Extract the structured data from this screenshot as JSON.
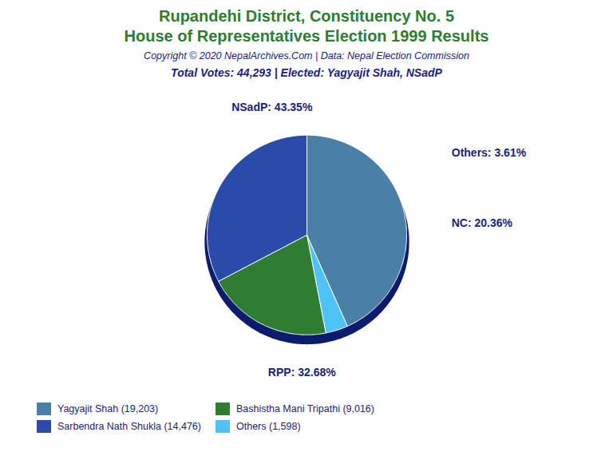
{
  "chart_data": {
    "type": "pie",
    "title": "Rupandehi District, Constituency No. 5",
    "subtitle": "House of Representatives Election 1999 Results",
    "annotations": [
      "Copyright © 2020 NepalArchives.Com | Data: Nepal Election Commission",
      "Total Votes: 44,293 | Elected: Yagyajit Shah, NSadP"
    ],
    "categories": [
      "NSadP",
      "Others",
      "NC",
      "RPP"
    ],
    "values": [
      43.35,
      3.61,
      20.36,
      32.68
    ],
    "value_labels": [
      "NSadP: 43.35%",
      "Others: 3.61%",
      "NC: 20.36%",
      "RPP: 32.68%"
    ],
    "colors": [
      "#4A7FA8",
      "#4DC3F7",
      "#2E7D32",
      "#2B4BAA"
    ],
    "data_labels": true,
    "legend": "lower left",
    "legend_entries": [
      {
        "label": "Yagyajit Shah (19,203)",
        "color": "#4A7FA8"
      },
      {
        "label": "Sarbendra Nath Shukla (14,476)",
        "color": "#2B4BAA"
      },
      {
        "label": "Bashistha Mani Tripathi (9,016)",
        "color": "#2E7D32"
      },
      {
        "label": "Others (1,598)",
        "color": "#4DC3F7"
      }
    ]
  }
}
